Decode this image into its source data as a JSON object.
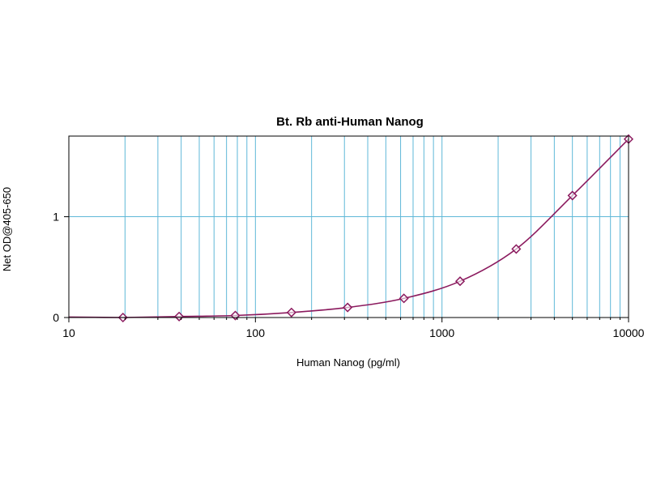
{
  "chart_data": {
    "type": "line",
    "title": "Bt. Rb anti-Human Nanog",
    "xlabel": "Human Nanog (pg/ml)",
    "ylabel": "Net OD@405-650",
    "x_scale": "log",
    "xlim": [
      10,
      10000
    ],
    "ylim": [
      0,
      1.8
    ],
    "x_ticks": [
      10,
      100,
      1000,
      10000
    ],
    "x_tick_labels": [
      "10",
      "100",
      "1000",
      "10000"
    ],
    "y_ticks": [
      0,
      1
    ],
    "y_tick_labels": [
      "0",
      "1"
    ],
    "grid": true,
    "series": [
      {
        "x": [
          19.5,
          39,
          78,
          156,
          312,
          625,
          1250,
          2500,
          5000,
          10000
        ],
        "y": [
          0.0,
          0.01,
          0.02,
          0.05,
          0.1,
          0.19,
          0.36,
          0.68,
          1.21,
          1.77
        ],
        "marker": "diamond",
        "fitted_curve": true
      }
    ],
    "colors": {
      "series": "#8b1a5e",
      "grid": "#5fb8d8",
      "axis": "#000000"
    }
  }
}
